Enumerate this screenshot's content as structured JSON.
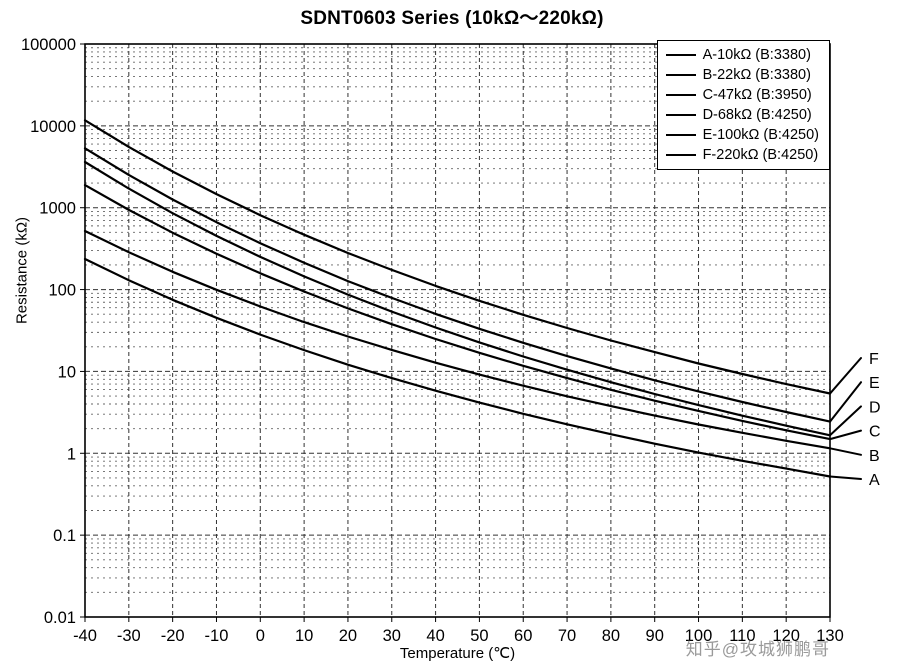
{
  "page": {
    "watermark": "知乎@攻城狮鹏哥"
  },
  "chart_data": {
    "type": "line",
    "title": "SDNT0603 Series (10kΩ～220kΩ)",
    "xlabel": "Temperature (℃)",
    "ylabel": "Resistance (kΩ)",
    "x_axis": {
      "min": -40,
      "max": 130,
      "tick_step": 10
    },
    "y_axis": {
      "scale": "log",
      "min": 0.01,
      "max": 100000,
      "tick_labels": [
        "100000",
        "10000",
        "1000",
        "100",
        "10",
        "1",
        "0.1",
        "0.01"
      ]
    },
    "grid": {
      "style": "dashed",
      "minor_log_lines": true
    },
    "legend_position": "top-right-inside",
    "line_color": "#000000",
    "x": [
      -40,
      -30,
      -20,
      -10,
      0,
      10,
      20,
      30,
      40,
      50,
      60,
      70,
      80,
      90,
      100,
      110,
      120,
      130
    ],
    "series": [
      {
        "end_label": "A",
        "label": "A-10kΩ (B:3380)",
        "values": [
          236,
          130,
          75.0,
          45.2,
          28.2,
          18.2,
          12.1,
          8.3,
          5.81,
          4.16,
          3.04,
          2.26,
          1.71,
          1.31,
          1.02,
          0.81,
          0.65,
          0.52
        ]
      },
      {
        "end_label": "B",
        "label": "B-22kΩ (B:3380)",
        "values": [
          519,
          286,
          165,
          99.4,
          62.1,
          40.1,
          26.7,
          18.3,
          12.8,
          9.15,
          6.69,
          4.97,
          3.77,
          2.89,
          2.25,
          1.78,
          1.42,
          1.15
        ]
      },
      {
        "end_label": "C",
        "label": "C-47kΩ (B:3950)",
        "values": [
          1889,
          941,
          495,
          274,
          158,
          94.8,
          58.9,
          37.8,
          24.9,
          16.9,
          11.7,
          8.28,
          5.97,
          4.39,
          3.29,
          2.49,
          1.91,
          1.49
        ]
      },
      {
        "end_label": "D",
        "label": "D-68kΩ (B:4250)",
        "values": [
          3617,
          1710,
          857,
          453,
          251,
          145,
          86.7,
          53.8,
          34.4,
          22.6,
          15.2,
          10.5,
          7.38,
          5.3,
          3.88,
          2.88,
          2.17,
          1.66
        ]
      },
      {
        "end_label": "E",
        "label": "E-100kΩ (B:4250)",
        "values": [
          5319,
          2514,
          1260,
          666,
          369,
          213,
          127,
          79.1,
          50.5,
          33.2,
          22.4,
          15.4,
          10.9,
          7.8,
          5.7,
          4.23,
          3.19,
          2.44
        ]
      },
      {
        "end_label": "F",
        "label": "F-220kΩ (B:4250)",
        "values": [
          11702,
          5531,
          2772,
          1465,
          811,
          468,
          280,
          174,
          111,
          73,
          49.2,
          33.9,
          23.9,
          17.2,
          12.5,
          9.31,
          7.01,
          5.37
        ]
      }
    ]
  }
}
